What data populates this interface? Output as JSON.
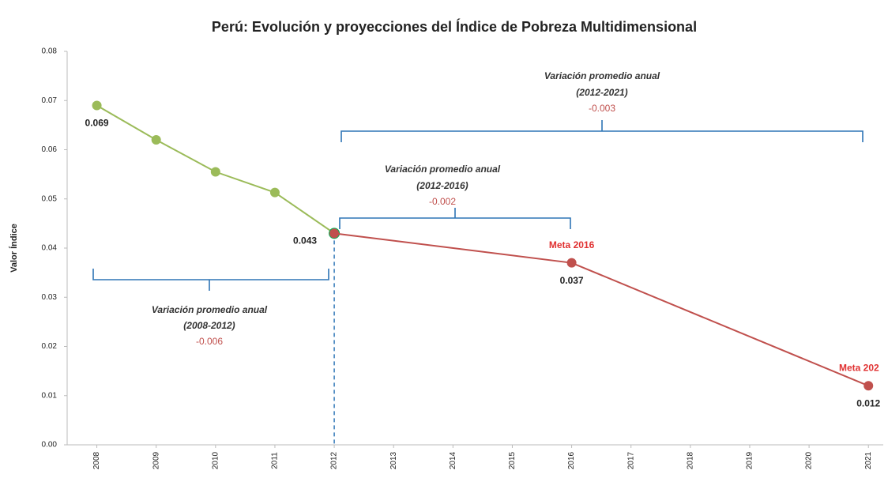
{
  "chart_data": {
    "type": "line",
    "title": "Perú: Evolución y proyecciones del Índice de Pobreza Multidimensional",
    "y_label": "Valor Índice",
    "xlim": [
      2007.5,
      2021.25
    ],
    "xticks": [
      2008,
      2009,
      2010,
      2011,
      2012,
      2013,
      2014,
      2015,
      2016,
      2017,
      2018,
      2019,
      2020,
      2021
    ],
    "ylim": [
      0,
      0.08
    ],
    "yticks": [
      {
        "value": 0,
        "label": "0.00"
      },
      0.01,
      0.02,
      0.03,
      0.04,
      0.05,
      0.06,
      0.07,
      0.08
    ],
    "series": [
      {
        "color": "#9bbb59",
        "x": [
          2008,
          2009,
          2010,
          2011,
          2012
        ],
        "values": [
          0.069,
          0.062,
          0.0555,
          0.0513,
          0.043
        ],
        "value_labels": [
          "0.069",
          null,
          null,
          null,
          "0.043"
        ]
      },
      {
        "color": "#c0504d",
        "x": [
          2012,
          2016,
          2021
        ],
        "values": [
          0.043,
          0.037,
          0.012
        ],
        "value_labels": [
          null,
          "0.037",
          "0.012"
        ],
        "point_annotations": [
          null,
          "Meta 2016",
          "Meta 202"
        ]
      }
    ],
    "annotations": [
      {
        "text": "Variación promedio anual",
        "period": "(2008-2012)",
        "value": "-0.006"
      },
      {
        "text": "Variación promedio anual",
        "period": "(2012-2016)",
        "value": "-0.002"
      },
      {
        "text": "Variación promedio anual",
        "period": "(2012-2021)",
        "value": "-0.003"
      }
    ]
  }
}
